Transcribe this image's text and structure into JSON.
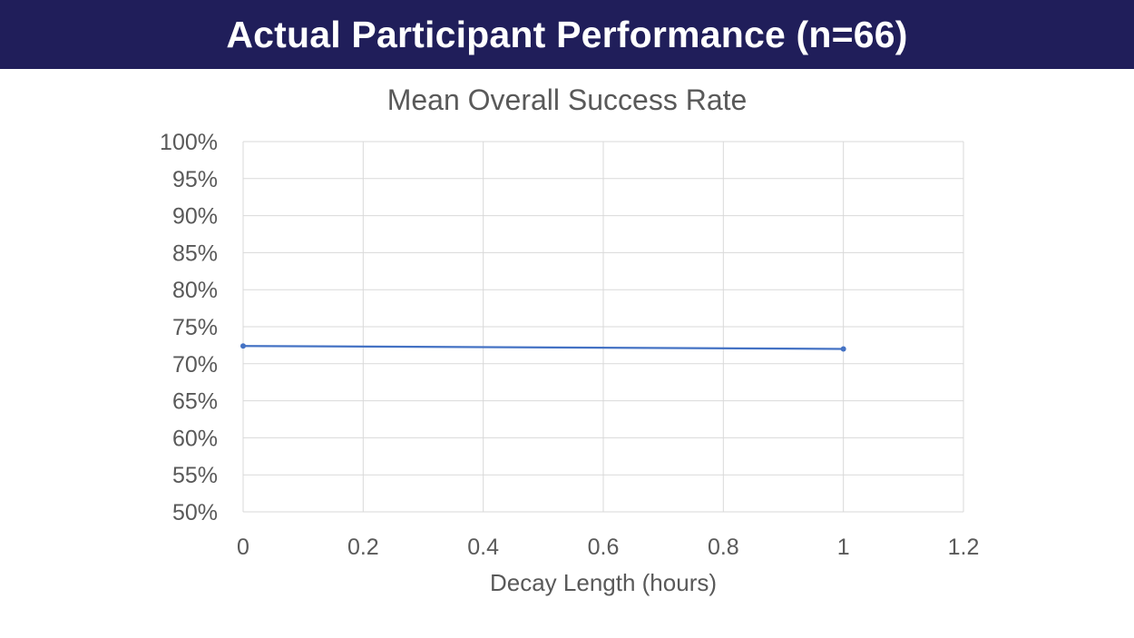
{
  "slide": {
    "title": "Actual Participant Performance (n=66)"
  },
  "chart_data": {
    "type": "line",
    "title": "Mean Overall Success Rate",
    "xlabel": "Decay Length (hours)",
    "ylabel": "",
    "xlim": [
      0,
      1.2
    ],
    "ylim": [
      0.5,
      1.0
    ],
    "x_ticks": [
      0,
      0.2,
      0.4,
      0.6,
      0.8,
      1,
      1.2
    ],
    "x_tick_labels": [
      "0",
      "0.2",
      "0.4",
      "0.6",
      "0.8",
      "1",
      "1.2"
    ],
    "y_ticks": [
      0.5,
      0.55,
      0.6,
      0.65,
      0.7,
      0.75,
      0.8,
      0.85,
      0.9,
      0.95,
      1.0
    ],
    "y_tick_labels": [
      "50%",
      "55%",
      "60%",
      "65%",
      "70%",
      "75%",
      "80%",
      "85%",
      "90%",
      "95%",
      "100%"
    ],
    "grid": true,
    "legend": "none",
    "series": [
      {
        "color": "#4472c4",
        "x": [
          0,
          1
        ],
        "y": [
          0.724,
          0.72
        ]
      }
    ]
  }
}
